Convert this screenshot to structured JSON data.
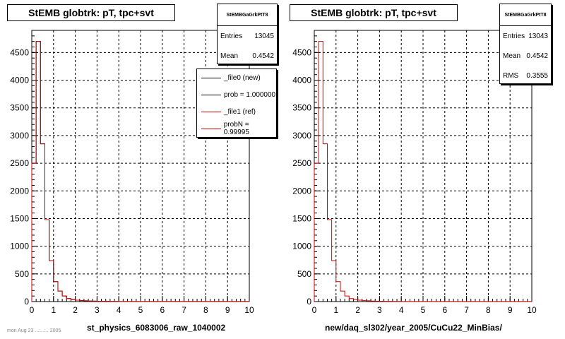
{
  "chart_data": [
    {
      "type": "bar",
      "title": "StEMB globtrk: pT, tpc+svt",
      "xlabel": "st_physics_6083006_raw_1040002",
      "ylabel": "",
      "xlim": [
        0,
        10
      ],
      "ylim": [
        0,
        4900
      ],
      "x_ticks": [
        "0",
        "1",
        "2",
        "3",
        "4",
        "5",
        "6",
        "7",
        "8",
        "9",
        "10"
      ],
      "y_ticks": [
        "0",
        "500",
        "1000",
        "1500",
        "2000",
        "2500",
        "3000",
        "3500",
        "4000",
        "4500"
      ],
      "grid": true,
      "bin_width": 0.2,
      "series": [
        {
          "name": "_file0 (new)",
          "color": "#000000",
          "values": [
            2500,
            4700,
            2850,
            1480,
            740,
            360,
            190,
            100,
            55,
            35,
            25,
            18,
            14,
            10,
            8,
            6,
            5,
            4,
            3,
            3,
            2,
            2,
            2,
            1,
            1,
            1,
            1,
            1,
            1,
            1,
            1,
            1,
            1,
            1,
            1,
            1,
            1,
            1,
            1,
            1,
            1,
            1,
            1,
            1,
            1,
            1,
            1,
            1,
            1,
            1
          ]
        },
        {
          "name": "_file1 (ref)",
          "color": "#cc0000",
          "values": [
            2500,
            4700,
            2850,
            1480,
            740,
            360,
            190,
            100,
            55,
            35,
            25,
            18,
            14,
            10,
            8,
            6,
            5,
            4,
            3,
            3,
            2,
            2,
            2,
            1,
            1,
            1,
            1,
            1,
            1,
            1,
            1,
            1,
            1,
            1,
            1,
            1,
            1,
            1,
            1,
            1,
            1,
            1,
            1,
            1,
            1,
            1,
            1,
            1,
            1,
            1
          ]
        }
      ],
      "stats": {
        "name": "StEMBGaGrkPtT8",
        "entries_label": "Entries",
        "entries": "13045",
        "mean_label": "Mean",
        "mean": "0.4542"
      },
      "legend": {
        "placement": "top-right",
        "entries": [
          "_file0 (new)",
          "prob = 1.000000",
          "_file1 (ref)",
          "probN = 0.99995"
        ]
      }
    },
    {
      "type": "bar",
      "title": "StEMB globtrk: pT, tpc+svt",
      "xlabel": "new/daq_sl302/year_2005/CuCu22_MinBias/",
      "ylabel": "",
      "xlim": [
        0,
        10
      ],
      "ylim": [
        0,
        4900
      ],
      "x_ticks": [
        "0",
        "1",
        "2",
        "3",
        "4",
        "5",
        "6",
        "7",
        "8",
        "9",
        "10"
      ],
      "y_ticks": [
        "0",
        "500",
        "1000",
        "1500",
        "2000",
        "2500",
        "3000",
        "3500",
        "4000",
        "4500"
      ],
      "grid": true,
      "bin_width": 0.2,
      "series": [
        {
          "color": "#cc0000",
          "values": [
            2500,
            4700,
            2850,
            1480,
            740,
            360,
            190,
            100,
            55,
            35,
            25,
            18,
            14,
            10,
            8,
            6,
            5,
            4,
            3,
            3,
            2,
            2,
            2,
            1,
            1,
            1,
            1,
            1,
            1,
            1,
            1,
            1,
            1,
            1,
            1,
            1,
            1,
            1,
            1,
            1,
            1,
            1,
            1,
            1,
            1,
            1,
            1,
            1,
            1,
            1
          ]
        }
      ],
      "stats": {
        "name": "StEMBGaGrkPtT8",
        "entries_label": "Entries",
        "entries": "13043",
        "mean_label": "Mean",
        "mean": "0.4542",
        "rms_label": "RMS",
        "rms": "0.3555"
      }
    }
  ],
  "footer": "mon Aug 23 ...:...:.. 2005"
}
